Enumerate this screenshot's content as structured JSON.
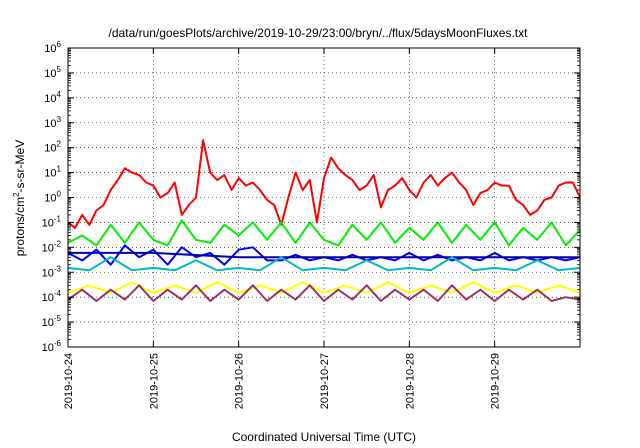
{
  "chart_data": {
    "type": "line",
    "title": "/data/run/goesPlots/archive/2019-10-29/23:00/bryn/../flux/5daysMoonFluxes.txt",
    "xlabel": "Coordinated Universal Time (UTC)",
    "ylabel": {
      "base": "protons/cm",
      "sup": "2",
      "rest": "-s-sr-MeV"
    },
    "y_scale": "log",
    "ylim": [
      1e-06,
      1000000.0
    ],
    "y_ticks": [
      {
        "base": "10",
        "exp": "-6"
      },
      {
        "base": "10",
        "exp": "-5"
      },
      {
        "base": "10",
        "exp": "-4"
      },
      {
        "base": "10",
        "exp": "-3"
      },
      {
        "base": "10",
        "exp": "-2"
      },
      {
        "base": "10",
        "exp": "-1"
      },
      {
        "base": "10",
        "exp": "0"
      },
      {
        "base": "10",
        "exp": "1"
      },
      {
        "base": "10",
        "exp": "2"
      },
      {
        "base": "10",
        "exp": "3"
      },
      {
        "base": "10",
        "exp": "4"
      },
      {
        "base": "10",
        "exp": "5"
      },
      {
        "base": "10",
        "exp": "6"
      }
    ],
    "xlim": [
      "2019-10-24T00:00",
      "2019-10-30T00:00"
    ],
    "x_ticks": [
      "2019-10-24",
      "2019-10-25",
      "2019-10-26",
      "2019-10-27",
      "2019-10-28",
      "2019-10-29"
    ],
    "grid": true,
    "legend": "none",
    "series": [
      {
        "color": "#ff0000",
        "x": [
          "2019-10-24T00:00",
          "2019-10-24T02:00",
          "2019-10-24T04:00",
          "2019-10-24T06:00",
          "2019-10-24T08:00",
          "2019-10-24T10:00",
          "2019-10-24T12:00",
          "2019-10-24T14:00",
          "2019-10-24T16:00",
          "2019-10-24T18:00",
          "2019-10-24T20:00",
          "2019-10-24T22:00",
          "2019-10-25T00:00",
          "2019-10-25T02:00",
          "2019-10-25T04:00",
          "2019-10-25T06:00",
          "2019-10-25T08:00",
          "2019-10-25T10:00",
          "2019-10-25T12:00",
          "2019-10-25T14:00",
          "2019-10-25T16:00",
          "2019-10-25T18:00",
          "2019-10-25T20:00",
          "2019-10-25T22:00",
          "2019-10-26T00:00",
          "2019-10-26T02:00",
          "2019-10-26T04:00",
          "2019-10-26T06:00",
          "2019-10-26T08:00",
          "2019-10-26T10:00",
          "2019-10-26T12:00",
          "2019-10-26T14:00",
          "2019-10-26T16:00",
          "2019-10-26T18:00",
          "2019-10-26T20:00",
          "2019-10-26T22:00",
          "2019-10-27T00:00",
          "2019-10-27T02:00",
          "2019-10-27T04:00",
          "2019-10-27T06:00",
          "2019-10-27T08:00",
          "2019-10-27T10:00",
          "2019-10-27T12:00",
          "2019-10-27T14:00",
          "2019-10-27T16:00",
          "2019-10-27T18:00",
          "2019-10-27T20:00",
          "2019-10-27T22:00",
          "2019-10-28T00:00",
          "2019-10-28T02:00",
          "2019-10-28T04:00",
          "2019-10-28T06:00",
          "2019-10-28T08:00",
          "2019-10-28T10:00",
          "2019-10-28T12:00",
          "2019-10-28T14:00",
          "2019-10-28T16:00",
          "2019-10-28T18:00",
          "2019-10-28T20:00",
          "2019-10-28T22:00",
          "2019-10-29T00:00",
          "2019-10-29T02:00",
          "2019-10-29T04:00",
          "2019-10-29T06:00",
          "2019-10-29T08:00",
          "2019-10-29T10:00",
          "2019-10-29T12:00",
          "2019-10-29T14:00",
          "2019-10-29T16:00",
          "2019-10-29T18:00",
          "2019-10-29T20:00",
          "2019-10-29T22:00",
          "2019-10-30T00:00"
        ],
        "y": [
          0.1,
          0.06,
          0.2,
          0.08,
          0.3,
          0.5,
          2,
          5,
          15,
          10,
          8,
          4,
          3,
          1,
          1.5,
          4,
          0.2,
          0.5,
          1,
          200,
          10,
          5,
          8,
          2,
          6,
          3,
          4,
          2,
          0.8,
          0.5,
          0.08,
          1,
          10,
          2,
          5,
          0.1,
          6,
          40,
          15,
          8,
          5,
          2,
          3,
          8,
          0.4,
          2,
          3,
          6,
          2,
          1,
          4,
          8,
          3,
          6,
          10,
          4,
          2,
          0.5,
          1.5,
          2,
          4,
          3,
          3,
          0.8,
          0.5,
          0.2,
          0.3,
          0.8,
          1,
          3,
          4,
          4,
          1
        ]
      },
      {
        "color": "#00ee00",
        "x": [
          "2019-10-24T00:00",
          "2019-10-24T04:00",
          "2019-10-24T08:00",
          "2019-10-24T12:00",
          "2019-10-24T16:00",
          "2019-10-24T20:00",
          "2019-10-25T00:00",
          "2019-10-25T04:00",
          "2019-10-25T08:00",
          "2019-10-25T12:00",
          "2019-10-25T16:00",
          "2019-10-25T20:00",
          "2019-10-26T00:00",
          "2019-10-26T04:00",
          "2019-10-26T08:00",
          "2019-10-26T12:00",
          "2019-10-26T16:00",
          "2019-10-26T20:00",
          "2019-10-27T00:00",
          "2019-10-27T04:00",
          "2019-10-27T08:00",
          "2019-10-27T12:00",
          "2019-10-27T16:00",
          "2019-10-27T20:00",
          "2019-10-28T00:00",
          "2019-10-28T04:00",
          "2019-10-28T08:00",
          "2019-10-28T12:00",
          "2019-10-28T16:00",
          "2019-10-28T20:00",
          "2019-10-29T00:00",
          "2019-10-29T04:00",
          "2019-10-29T08:00",
          "2019-10-29T12:00",
          "2019-10-29T16:00",
          "2019-10-29T20:00",
          "2019-10-30T00:00"
        ],
        "y": [
          0.015,
          0.03,
          0.012,
          0.08,
          0.015,
          0.1,
          0.02,
          0.012,
          0.12,
          0.02,
          0.015,
          0.08,
          0.03,
          0.1,
          0.02,
          0.1,
          0.015,
          0.1,
          0.02,
          0.012,
          0.08,
          0.02,
          0.1,
          0.015,
          0.06,
          0.02,
          0.1,
          0.015,
          0.08,
          0.02,
          0.1,
          0.012,
          0.06,
          0.02,
          0.1,
          0.012,
          0.05
        ]
      },
      {
        "color": "#0000ff",
        "x": [
          "2019-10-24T00:00",
          "2019-10-24T04:00",
          "2019-10-24T08:00",
          "2019-10-24T12:00",
          "2019-10-24T16:00",
          "2019-10-24T20:00",
          "2019-10-25T00:00",
          "2019-10-25T04:00",
          "2019-10-25T08:00",
          "2019-10-25T12:00",
          "2019-10-25T16:00",
          "2019-10-25T20:00",
          "2019-10-26T00:00",
          "2019-10-26T04:00",
          "2019-10-26T08:00",
          "2019-10-26T12:00",
          "2019-10-26T16:00",
          "2019-10-26T20:00",
          "2019-10-27T00:00",
          "2019-10-27T04:00",
          "2019-10-27T08:00",
          "2019-10-27T12:00",
          "2019-10-27T16:00",
          "2019-10-27T20:00",
          "2019-10-28T00:00",
          "2019-10-28T04:00",
          "2019-10-28T08:00",
          "2019-10-28T12:00",
          "2019-10-28T16:00",
          "2019-10-28T20:00",
          "2019-10-29T00:00",
          "2019-10-29T04:00",
          "2019-10-29T08:00",
          "2019-10-29T12:00",
          "2019-10-29T16:00",
          "2019-10-29T20:00",
          "2019-10-30T00:00"
        ],
        "y": [
          0.006,
          0.003,
          0.008,
          0.002,
          0.012,
          0.004,
          0.008,
          0.002,
          0.01,
          0.004,
          0.006,
          0.002,
          0.008,
          0.01,
          0.003,
          0.003,
          0.005,
          0.003,
          0.004,
          0.003,
          0.005,
          0.003,
          0.004,
          0.003,
          0.006,
          0.003,
          0.005,
          0.003,
          0.004,
          0.003,
          0.006,
          0.003,
          0.004,
          0.003,
          0.004,
          0.003,
          0.004
        ]
      },
      {
        "color": "#0000aa",
        "x": [
          "2019-10-24T00:00",
          "2019-10-25T00:00",
          "2019-10-26T00:00",
          "2019-10-27T00:00",
          "2019-10-28T00:00",
          "2019-10-29T00:00",
          "2019-10-30T00:00"
        ],
        "y": [
          0.006,
          0.006,
          0.004,
          0.004,
          0.004,
          0.004,
          0.004
        ]
      },
      {
        "color": "#00bbbb",
        "x": [
          "2019-10-24T00:00",
          "2019-10-24T06:00",
          "2019-10-24T12:00",
          "2019-10-24T18:00",
          "2019-10-25T00:00",
          "2019-10-25T06:00",
          "2019-10-25T12:00",
          "2019-10-25T18:00",
          "2019-10-26T00:00",
          "2019-10-26T06:00",
          "2019-10-26T12:00",
          "2019-10-26T18:00",
          "2019-10-27T00:00",
          "2019-10-27T06:00",
          "2019-10-27T12:00",
          "2019-10-27T18:00",
          "2019-10-28T00:00",
          "2019-10-28T06:00",
          "2019-10-28T12:00",
          "2019-10-28T18:00",
          "2019-10-29T00:00",
          "2019-10-29T06:00",
          "2019-10-29T12:00",
          "2019-10-29T18:00",
          "2019-10-30T00:00"
        ],
        "y": [
          0.0015,
          0.0012,
          0.004,
          0.0012,
          0.0015,
          0.0012,
          0.003,
          0.0012,
          0.0015,
          0.0012,
          0.004,
          0.0012,
          0.0015,
          0.0012,
          0.003,
          0.0012,
          0.0015,
          0.0012,
          0.004,
          0.0012,
          0.0015,
          0.0012,
          0.003,
          0.0012,
          0.0015
        ]
      },
      {
        "color": "#ffff00",
        "x": [
          "2019-10-24T00:00",
          "2019-10-24T06:00",
          "2019-10-24T12:00",
          "2019-10-24T18:00",
          "2019-10-25T00:00",
          "2019-10-25T06:00",
          "2019-10-25T12:00",
          "2019-10-25T18:00",
          "2019-10-26T00:00",
          "2019-10-26T06:00",
          "2019-10-26T12:00",
          "2019-10-26T18:00",
          "2019-10-27T00:00",
          "2019-10-27T06:00",
          "2019-10-27T12:00",
          "2019-10-27T18:00",
          "2019-10-28T00:00",
          "2019-10-28T06:00",
          "2019-10-28T12:00",
          "2019-10-28T18:00",
          "2019-10-29T00:00",
          "2019-10-29T06:00",
          "2019-10-29T12:00",
          "2019-10-29T18:00",
          "2019-10-30T00:00"
        ],
        "y": [
          0.00015,
          0.0003,
          0.00015,
          0.0004,
          0.00015,
          0.0003,
          0.00015,
          0.0004,
          0.00015,
          0.0003,
          0.00015,
          0.0004,
          0.00015,
          0.0003,
          0.00015,
          0.0004,
          0.00015,
          0.0003,
          0.00015,
          0.0004,
          0.00015,
          0.0003,
          0.00015,
          0.0003,
          0.00015
        ]
      },
      {
        "color": "#993366",
        "x": [
          "2019-10-24T00:00",
          "2019-10-24T04:00",
          "2019-10-24T08:00",
          "2019-10-24T12:00",
          "2019-10-24T16:00",
          "2019-10-24T20:00",
          "2019-10-25T00:00",
          "2019-10-25T04:00",
          "2019-10-25T08:00",
          "2019-10-25T12:00",
          "2019-10-25T16:00",
          "2019-10-25T20:00",
          "2019-10-26T00:00",
          "2019-10-26T04:00",
          "2019-10-26T08:00",
          "2019-10-26T12:00",
          "2019-10-26T16:00",
          "2019-10-26T20:00",
          "2019-10-27T00:00",
          "2019-10-27T04:00",
          "2019-10-27T08:00",
          "2019-10-27T12:00",
          "2019-10-27T16:00",
          "2019-10-27T20:00",
          "2019-10-28T00:00",
          "2019-10-28T04:00",
          "2019-10-28T08:00",
          "2019-10-28T12:00",
          "2019-10-28T16:00",
          "2019-10-28T20:00",
          "2019-10-29T00:00",
          "2019-10-29T04:00",
          "2019-10-29T08:00",
          "2019-10-29T12:00",
          "2019-10-29T16:00",
          "2019-10-29T20:00",
          "2019-10-30T00:00"
        ],
        "y": [
          8e-05,
          0.0002,
          7e-05,
          0.0002,
          8e-05,
          0.0003,
          7e-05,
          0.0002,
          8e-05,
          0.0003,
          7e-05,
          0.0002,
          8e-05,
          0.0003,
          7e-05,
          0.0002,
          8e-05,
          0.0003,
          7e-05,
          0.0002,
          8e-05,
          0.0003,
          7e-05,
          0.0002,
          8e-05,
          0.0002,
          7e-05,
          0.0003,
          8e-05,
          0.0002,
          7e-05,
          0.0002,
          8e-05,
          0.0002,
          7e-05,
          0.0001,
          8e-05
        ]
      }
    ]
  }
}
